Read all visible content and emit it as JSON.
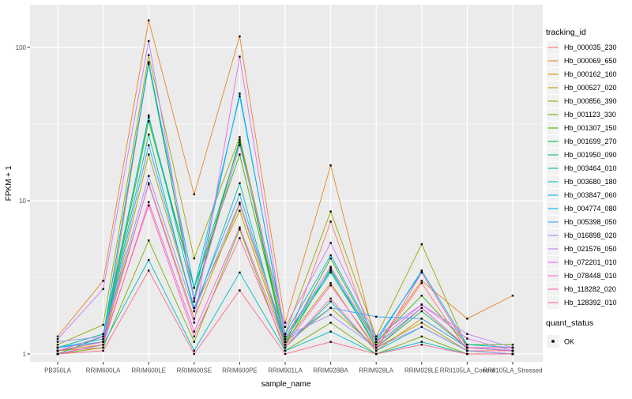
{
  "panel": {
    "bg_color": "#EBEBEB",
    "grid_color": "#FFFFFF",
    "tick_color": "#333333",
    "tick_label_color": "#4D4D4D",
    "legend_key_bg": "#F2F2F2"
  },
  "chart_data": {
    "type": "line",
    "title": "",
    "xlabel": "sample_name",
    "ylabel": "FPKM + 1",
    "y_scale": "log10",
    "ylim": [
      0.9,
      190
    ],
    "y_tick_values": [
      1,
      10,
      100
    ],
    "y_tick_labels": [
      "1",
      "10",
      "100"
    ],
    "y_minor_values": [
      3.1623,
      31.623
    ],
    "grid": "on",
    "legend_position": "right",
    "point_color": "#000000",
    "categories": [
      "PB350LA",
      "RRIM600LA",
      "RRIM600LE",
      "RRIM600SE",
      "RRIM600PE",
      "RRIM901LA",
      "RRIM928BA",
      "RRIM928LA",
      "RRIM928LE",
      "RRII105LA_Control",
      "RRII105LA_Stressed"
    ],
    "series": [
      {
        "name": "Hb_000035_230",
        "color": "#F8766D",
        "values": [
          1.05,
          1.1,
          80,
          2.2,
          25,
          1.1,
          7.3,
          1.1,
          2.9,
          1.05,
          1.05
        ]
      },
      {
        "name": "Hb_000069_650",
        "color": "#E88526",
        "values": [
          1.3,
          3.0,
          150,
          11,
          118,
          1.6,
          17,
          1.15,
          3.0,
          1.7,
          2.4
        ]
      },
      {
        "name": "Hb_000162_160",
        "color": "#D39200",
        "values": [
          1.1,
          1.2,
          13,
          1.7,
          9.5,
          1.2,
          2.9,
          1.05,
          1.7,
          1.1,
          1.05
        ]
      },
      {
        "name": "Hb_000527_020",
        "color": "#B79F00",
        "values": [
          1.05,
          1.15,
          20,
          2.0,
          8.6,
          1.15,
          2.0,
          1.1,
          1.6,
          1.05,
          1.0
        ]
      },
      {
        "name": "Hb_000856_390",
        "color": "#9DA700",
        "values": [
          1.15,
          1.55,
          89,
          4.2,
          26,
          1.35,
          8.5,
          1.3,
          5.2,
          1.1,
          1.1
        ]
      },
      {
        "name": "Hb_001123_330",
        "color": "#72B000",
        "values": [
          1.0,
          1.1,
          5.5,
          1.2,
          6.5,
          1.05,
          1.6,
          1.0,
          1.3,
          1.0,
          1.0
        ]
      },
      {
        "name": "Hb_001307_150",
        "color": "#39B600",
        "values": [
          1.05,
          1.2,
          33,
          2.7,
          20,
          1.2,
          4.2,
          1.2,
          2.4,
          1.15,
          1.15
        ]
      },
      {
        "name": "Hb_001699_270",
        "color": "#00BA42",
        "values": [
          1.0,
          1.3,
          78,
          2.3,
          25,
          1.15,
          3.6,
          1.1,
          1.9,
          1.1,
          1.1
        ]
      },
      {
        "name": "Hb_001950_090",
        "color": "#00BD7E",
        "values": [
          1.1,
          1.35,
          35,
          2.7,
          24,
          1.25,
          3.4,
          1.15,
          2.0,
          1.1,
          1.05
        ]
      },
      {
        "name": "Hb_003464_010",
        "color": "#00BFA5",
        "values": [
          1.05,
          1.2,
          27,
          1.9,
          13,
          1.1,
          2.2,
          1.05,
          1.5,
          1.05,
          1.0
        ]
      },
      {
        "name": "Hb_003680_180",
        "color": "#00BFC4",
        "values": [
          1.0,
          1.15,
          4.1,
          1.05,
          3.4,
          1.05,
          1.4,
          1.0,
          1.2,
          1.0,
          1.0
        ]
      },
      {
        "name": "Hb_003847_060",
        "color": "#00BADE",
        "values": [
          1.1,
          1.25,
          36,
          2.3,
          50,
          1.3,
          3.5,
          1.2,
          3.5,
          1.15,
          1.1
        ]
      },
      {
        "name": "Hb_004774_080",
        "color": "#00B0F6",
        "values": [
          1.05,
          1.3,
          80,
          2.7,
          48,
          1.35,
          4.4,
          1.25,
          3.4,
          1.1,
          1.05
        ]
      },
      {
        "name": "Hb_005398_050",
        "color": "#35A2FF",
        "values": [
          1.1,
          1.2,
          23,
          2.0,
          11,
          1.2,
          2.0,
          1.75,
          1.7,
          1.1,
          1.05
        ]
      },
      {
        "name": "Hb_016898_020",
        "color": "#9590FF",
        "values": [
          1.2,
          1.3,
          14.5,
          1.9,
          9.7,
          1.3,
          1.8,
          1.1,
          1.5,
          1.05,
          1.0
        ]
      },
      {
        "name": "Hb_021576_050",
        "color": "#C77CFF",
        "values": [
          1.25,
          2.65,
          110,
          2.2,
          23,
          1.5,
          5.3,
          1.3,
          2.1,
          1.35,
          1.1
        ]
      },
      {
        "name": "Hb_072201_010",
        "color": "#E76BF3",
        "values": [
          1.05,
          1.3,
          12.8,
          1.6,
          87,
          1.3,
          3.7,
          1.2,
          2.1,
          1.26,
          1.05
        ]
      },
      {
        "name": "Hb_078448_010",
        "color": "#FB61D7",
        "values": [
          1.0,
          1.15,
          9.8,
          1.4,
          6.7,
          1.15,
          2.8,
          1.1,
          2.0,
          1.1,
          1.05
        ]
      },
      {
        "name": "Hb_118282_020",
        "color": "#FF64B0",
        "values": [
          1.05,
          1.2,
          9.3,
          1.3,
          5.7,
          1.1,
          2.3,
          1.05,
          3.4,
          1.1,
          1.1
        ]
      },
      {
        "name": "Hb_128392_010",
        "color": "#FF6A89",
        "values": [
          1.0,
          1.05,
          3.5,
          1.0,
          2.6,
          1.0,
          1.2,
          1.0,
          1.15,
          1.0,
          1.0
        ]
      }
    ],
    "legend": {
      "color_title": "tracking_id",
      "shape_title": "quant_status",
      "shape_items": [
        {
          "label": "OK"
        }
      ]
    }
  }
}
